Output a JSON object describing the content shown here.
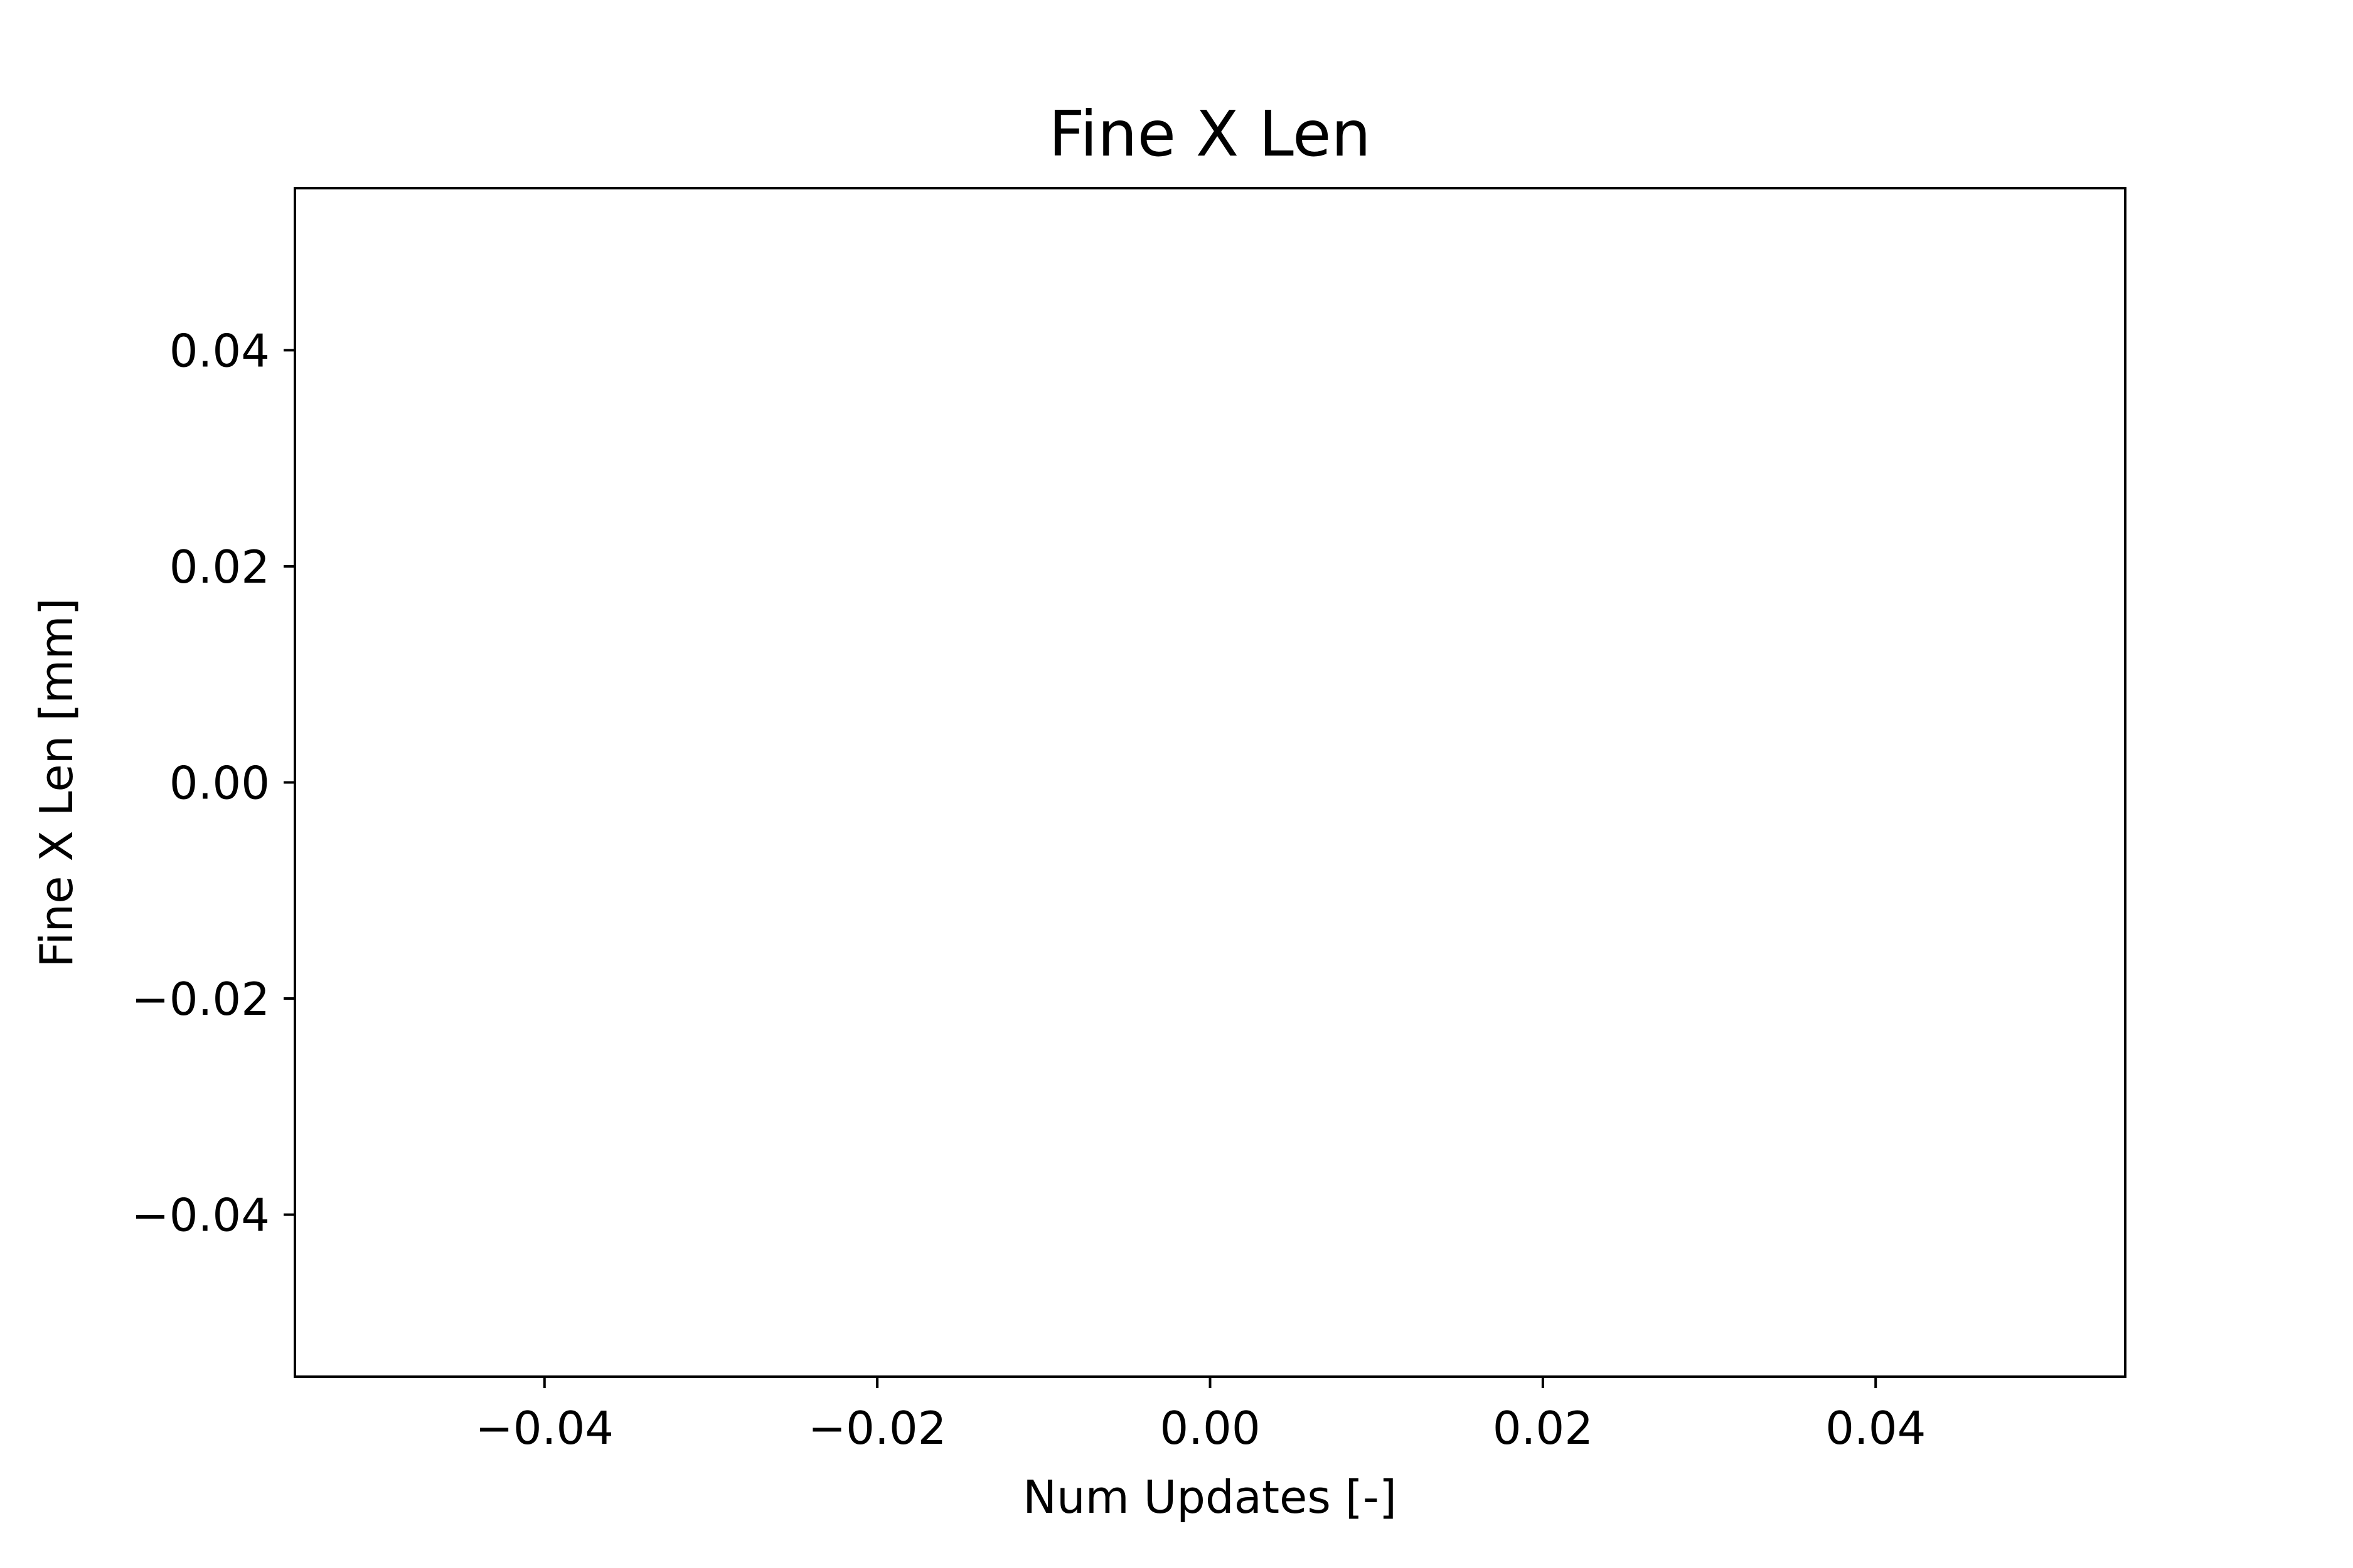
{
  "chart_data": {
    "type": "line",
    "title": "Fine X Len",
    "xlabel": "Num Updates [-]",
    "ylabel": "Fine X Len [mm]",
    "xlim": [
      -0.055,
      0.055
    ],
    "ylim": [
      -0.055,
      0.055
    ],
    "x_ticks": [
      -0.04,
      -0.02,
      0.0,
      0.02,
      0.04
    ],
    "x_tick_labels": [
      "−0.04",
      "−0.02",
      "0.00",
      "0.02",
      "0.04"
    ],
    "y_ticks": [
      -0.04,
      -0.02,
      0.0,
      0.02,
      0.04
    ],
    "y_tick_labels": [
      "−0.04",
      "−0.02",
      "0.00",
      "0.02",
      "0.04"
    ],
    "grid": false,
    "series": [
      {
        "values": []
      }
    ]
  },
  "colors": {
    "axes": "#000000",
    "background": "#ffffff"
  }
}
